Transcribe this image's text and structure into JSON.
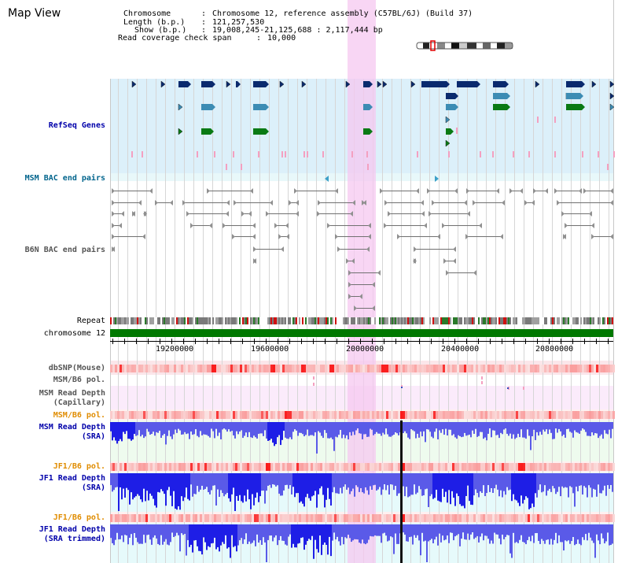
{
  "title": "Map View",
  "info": {
    "chromosome_label": "Chromosome",
    "chromosome_value": "Chromosome 12, reference assembly (C57BL/6J) (Build 37)",
    "length_label": "Length (b.p.)",
    "length_value": "121,257,530",
    "show_label": "Show (b.p.)",
    "show_value": "19,008,245-21,125,688 : 2,117,444 bp",
    "coverage_label": "Read coverage check span",
    "coverage_value": "10,000"
  },
  "tracks": {
    "refseq": "RefSeq Genes",
    "msm_bac": "MSM BAC end pairs",
    "b6n_bac": "B6N BAC end pairs",
    "repeat": "Repeat",
    "chromosome": "chromosome 12",
    "dbsnp": "dbSNP(Mouse)",
    "msm_pol": "MSM/B6 pol.",
    "msm_depth_cap_1": "MSM Read Depth",
    "msm_depth_cap_2": "(Capillary)",
    "msm_pol2": "MSM/B6 pol.",
    "msm_depth_sra_1": "MSM Read Depth",
    "msm_depth_sra_2": "(SRA)",
    "jf1_pol": "JF1/B6 pol.",
    "jf1_depth_sra_1": "JF1 Read Depth",
    "jf1_depth_sra_2": "(SRA)",
    "jf1_pol2": "JF1/B6 pol.",
    "jf1_depth_trim_1": "JF1 Read Depth",
    "jf1_depth_trim_2": "(SRA trimmed)"
  },
  "axis_ticks": [
    "19200000",
    "19600000",
    "20000000",
    "20400000",
    "20800000"
  ],
  "colors": {
    "gene_dark": "#0a2a6e",
    "gene_mid": "#3c8cb4",
    "gene_green": "#0a7a14",
    "highlight": "#f5c8f0",
    "refseq_bg": "#dcf0fa",
    "depth_blue": "#1e1ee6",
    "chromosome_green": "#007800"
  }
}
